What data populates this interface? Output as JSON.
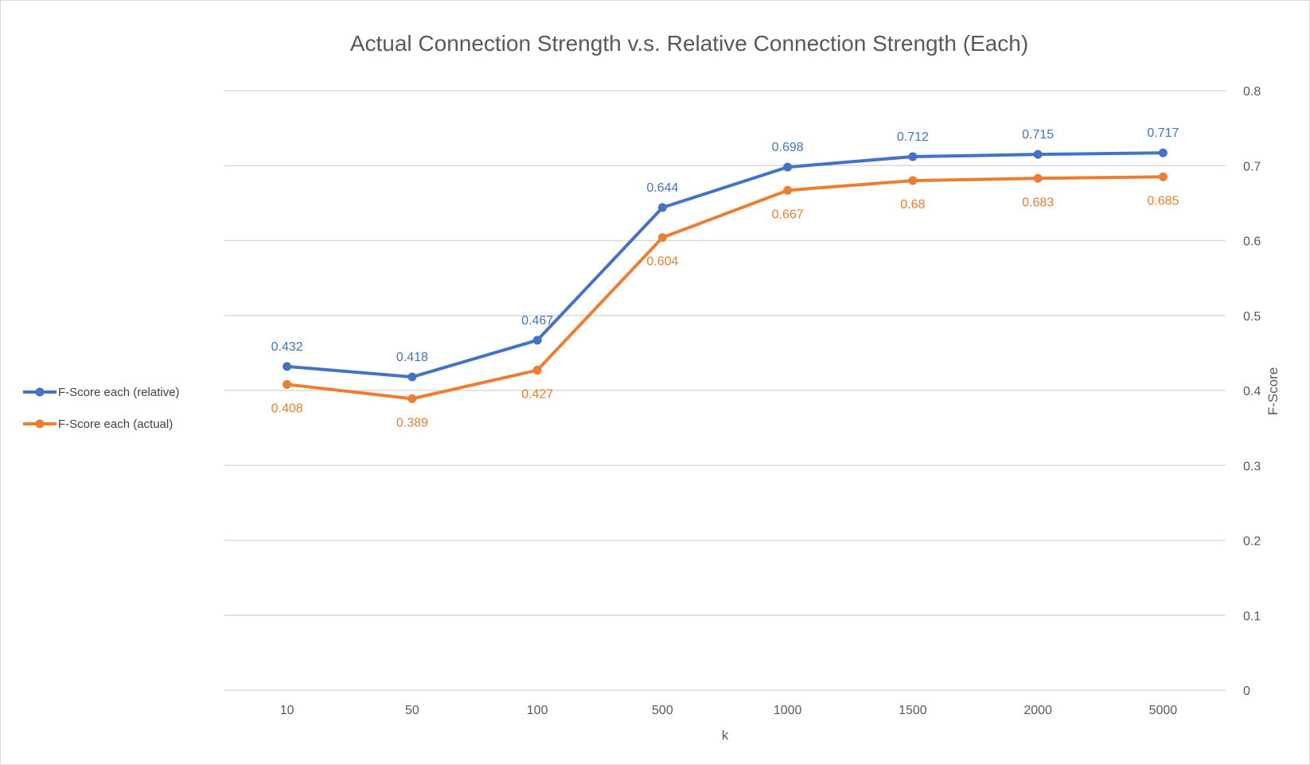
{
  "chart_data": {
    "type": "line",
    "title": "Actual Connection Strength v.s. Relative Connection Strength (Each)",
    "xlabel": "k",
    "ylabel": "F-Score",
    "categories": [
      "10",
      "50",
      "100",
      "500",
      "1000",
      "1500",
      "2000",
      "5000"
    ],
    "ylim": [
      0,
      0.8
    ],
    "yticks": [
      0,
      0.1,
      0.2,
      0.3,
      0.4,
      0.5,
      0.6,
      0.7,
      0.8
    ],
    "y_axis_side": "right",
    "grid": true,
    "legend_position": "left",
    "series": [
      {
        "name": "F-Score each (relative)",
        "color": "#4472C4",
        "values": [
          0.432,
          0.418,
          0.467,
          0.644,
          0.698,
          0.712,
          0.715,
          0.717
        ],
        "labels": [
          "0.432",
          "0.418",
          "0.467",
          "0.644",
          "0.698",
          "0.712",
          "0.715",
          "0.717"
        ],
        "label_position": "above"
      },
      {
        "name": "F-Score each (actual)",
        "color": "#ED7D31",
        "values": [
          0.408,
          0.389,
          0.427,
          0.604,
          0.667,
          0.68,
          0.683,
          0.685
        ],
        "labels": [
          "0.408",
          "0.389",
          "0.427",
          "0.604",
          "0.667",
          "0.68",
          "0.683",
          "0.685"
        ],
        "label_position": "below"
      }
    ]
  }
}
